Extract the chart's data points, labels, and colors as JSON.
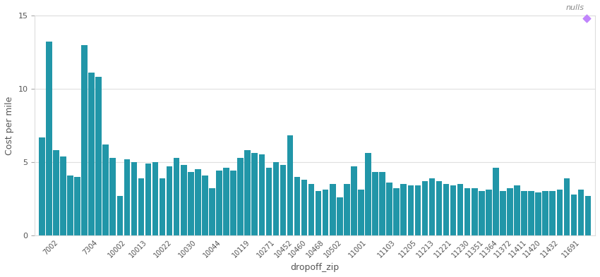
{
  "categories": [
    "7002",
    "7002",
    "7002",
    "7002",
    "7002",
    "7002",
    "7304",
    "7304",
    "7304",
    "7304",
    "7304",
    "10002",
    "10002",
    "10002",
    "10013",
    "10013",
    "10013",
    "10022",
    "10022",
    "10022",
    "10022",
    "10030",
    "10030",
    "10030",
    "10044",
    "10044",
    "10044",
    "10044",
    "10119",
    "10119",
    "10119",
    "10119",
    "10271",
    "10271",
    "10271",
    "10452",
    "10452",
    "10460",
    "10460",
    "10468",
    "10468",
    "10468",
    "10502",
    "10502",
    "11001",
    "11001",
    "11001",
    "11001",
    "11001",
    "11103",
    "11103",
    "11103",
    "11205",
    "11205",
    "11205",
    "11213",
    "11213",
    "11221",
    "11221",
    "11221",
    "11230",
    "11230",
    "11351",
    "11351",
    "11364",
    "11364",
    "11372",
    "11372",
    "11411",
    "11411",
    "11420",
    "11420",
    "11432",
    "11432",
    "11432",
    "11691",
    "11691",
    "11691"
  ],
  "values": [
    6.7,
    13.2,
    5.8,
    5.4,
    4.1,
    4.0,
    13.0,
    11.1,
    10.8,
    6.2,
    5.3,
    2.7,
    5.2,
    5.0,
    3.9,
    4.9,
    5.0,
    3.9,
    4.7,
    5.3,
    4.8,
    4.3,
    4.5,
    4.1,
    3.2,
    4.4,
    4.6,
    4.4,
    5.3,
    5.8,
    5.6,
    5.5,
    4.6,
    5.0,
    4.8,
    6.8,
    4.0,
    3.8,
    3.5,
    3.0,
    3.1,
    3.5,
    2.6,
    3.5,
    4.7,
    3.1,
    5.6,
    4.3,
    4.3,
    3.6,
    3.2,
    3.5,
    3.4,
    3.4,
    3.7,
    3.9,
    3.7,
    3.5,
    3.4,
    3.5,
    3.2,
    3.2,
    3.0,
    3.1,
    4.6,
    3.0,
    3.2,
    3.4,
    3.0,
    3.0,
    2.9,
    3.0,
    3.0,
    3.1,
    3.9,
    2.8,
    3.1,
    2.7
  ],
  "bar_color": "#2196a8",
  "ylabel": "Cost per mile",
  "xlabel": "dropoff_zip",
  "ylim": [
    0,
    15
  ],
  "yticks": [
    0,
    5,
    10,
    15
  ],
  "bg_color": "#ffffff",
  "grid_color": "#e0e0e0",
  "legend_text": "nulls",
  "legend_marker_color": "#c084fc",
  "tick_label_fontsize": 7,
  "axis_label_fontsize": 9,
  "selected_xticks": [
    "7002",
    "7304",
    "10002",
    "10013",
    "10022",
    "10030",
    "10044",
    "10119",
    "10271",
    "10452",
    "10460",
    "10468",
    "10502",
    "11001",
    "11103",
    "11205",
    "11213",
    "11221",
    "11230",
    "11351",
    "11364",
    "11372",
    "11411",
    "11420",
    "11432",
    "11691"
  ]
}
